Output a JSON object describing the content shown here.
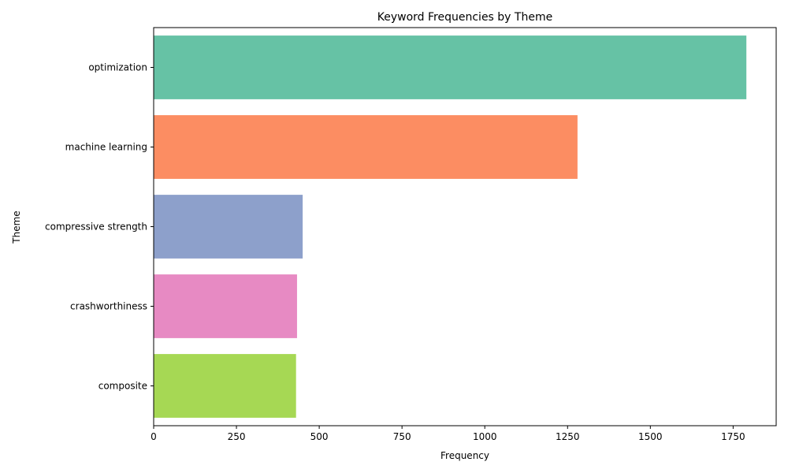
{
  "chart_data": {
    "type": "bar",
    "orientation": "horizontal",
    "title": "Keyword Frequencies by Theme",
    "xlabel": "Frequency",
    "ylabel": "Theme",
    "categories": [
      "optimization",
      "machine learning",
      "compressive strength",
      "crashworthiness",
      "composite"
    ],
    "values": [
      1790,
      1280,
      450,
      433,
      430
    ],
    "colors": [
      "#66c2a5",
      "#fc8d62",
      "#8da0cb",
      "#e78ac3",
      "#a6d854"
    ],
    "xlim": [
      0,
      1880
    ],
    "xticks": [
      0,
      250,
      500,
      750,
      1000,
      1250,
      1500,
      1750
    ],
    "grid": false,
    "legend": "none"
  }
}
